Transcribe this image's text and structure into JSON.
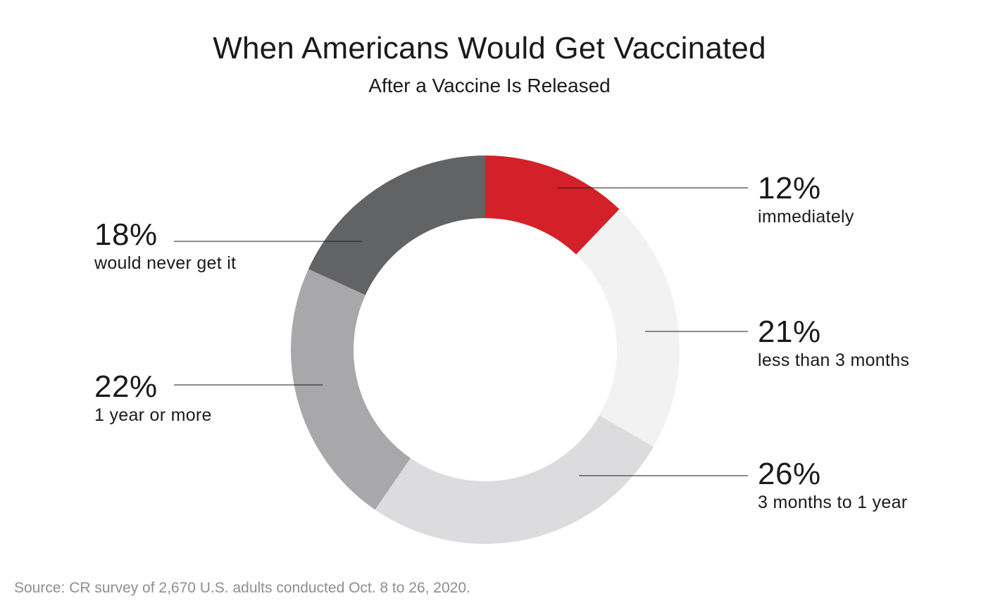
{
  "title": "When Americans Would Get Vaccinated",
  "subtitle": "After a Vaccine Is Released",
  "source": "Source: CR survey of 2,670 U.S. adults conducted Oct. 8 to 26, 2020.",
  "chart_data": {
    "type": "pie",
    "variant": "donut",
    "title": "When Americans Would Get Vaccinated",
    "subtitle": "After a Vaccine Is Released",
    "slices": [
      {
        "label": "immediately",
        "value": 12,
        "display": "12%",
        "color": "#d42028"
      },
      {
        "label": "less than 3 months",
        "value": 21,
        "display": "21%",
        "color": "#f2f2f2"
      },
      {
        "label": "3 months to 1 year",
        "value": 26,
        "display": "26%",
        "color": "#dcdcde"
      },
      {
        "label": "1 year or more",
        "value": 22,
        "display": "22%",
        "color": "#a8a8ab"
      },
      {
        "label": "would never get it",
        "value": 18,
        "display": "18%",
        "color": "#626365"
      }
    ],
    "start": "top",
    "direction": "clockwise"
  }
}
